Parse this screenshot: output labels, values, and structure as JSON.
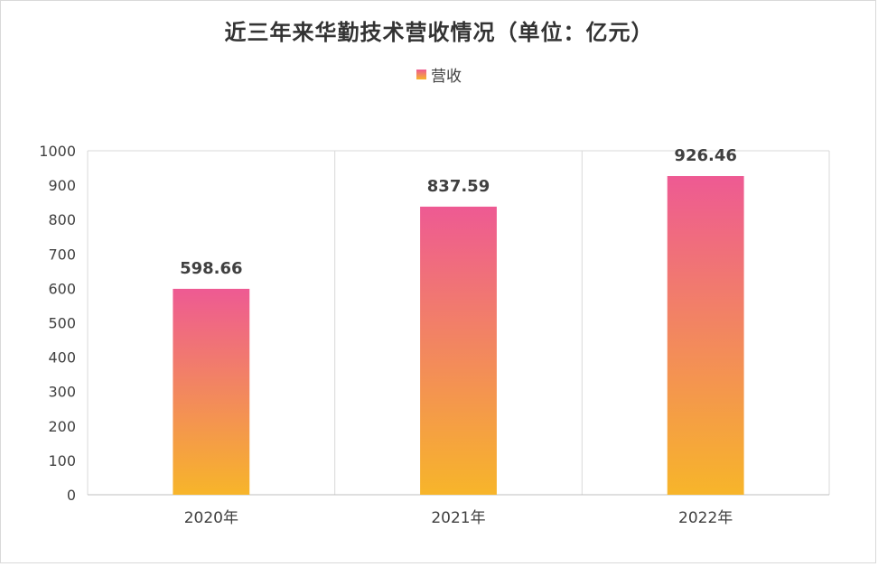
{
  "chart_data": {
    "type": "bar",
    "title": "近三年来华勤技术营收情况（单位：亿元）",
    "categories": [
      "2020年",
      "2021年",
      "2022年"
    ],
    "series": [
      {
        "name": "营收",
        "values": [
          598.66,
          837.59,
          926.46
        ]
      }
    ],
    "value_labels": [
      "598.66",
      "837.59",
      "926.46"
    ],
    "yticks": [
      "0",
      "100",
      "200",
      "300",
      "400",
      "500",
      "600",
      "700",
      "800",
      "900",
      "1000"
    ],
    "ylim": [
      0,
      1000
    ],
    "grid": "vertical category separators",
    "legend": "top-center",
    "colors": {
      "bar_top": "#ee5a93",
      "bar_bottom": "#f7b52a",
      "grid": "#d9d9d9",
      "text": "#404040"
    }
  }
}
